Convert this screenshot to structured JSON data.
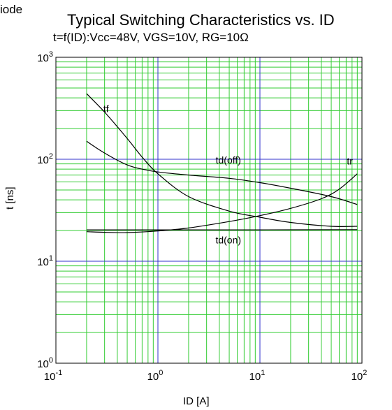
{
  "corner_text": "iode",
  "chart_data": {
    "type": "line",
    "title": "Typical Switching Characteristics vs. ID",
    "subtitle": "t=f(ID):Vcc=48V, VGS=10V, RG=10Ω",
    "xlabel": "ID [A]",
    "ylabel": "t [ns]",
    "xscale": "log",
    "yscale": "log",
    "xlim": [
      0.1,
      100
    ],
    "ylim": [
      1,
      1000
    ],
    "xticks": [
      {
        "base": "10",
        "exp": "-1"
      },
      {
        "base": "10",
        "exp": "0"
      },
      {
        "base": "10",
        "exp": "1"
      },
      {
        "base": "10",
        "exp": "2"
      }
    ],
    "yticks": [
      {
        "base": "10",
        "exp": "0"
      },
      {
        "base": "10",
        "exp": "1"
      },
      {
        "base": "10",
        "exp": "2"
      },
      {
        "base": "10",
        "exp": "3"
      }
    ],
    "grid": true,
    "minor_grid_color": "#33cc33",
    "major_grid_color": "#3333cc",
    "line_color": "#000000",
    "series": [
      {
        "name": "tf",
        "x": [
          0.2,
          0.3,
          0.5,
          0.7,
          1,
          2,
          5,
          10,
          20,
          50,
          90
        ],
        "y": [
          440,
          290,
          160,
          105,
          72,
          43,
          31,
          27,
          24,
          22,
          22
        ]
      },
      {
        "name": "td(off)",
        "x": [
          0.2,
          0.3,
          0.5,
          0.7,
          1,
          2,
          5,
          10,
          20,
          50,
          90
        ],
        "y": [
          150,
          115,
          88,
          80,
          75,
          70,
          65,
          59,
          52,
          43,
          36
        ]
      },
      {
        "name": "tr",
        "x": [
          0.2,
          0.3,
          0.5,
          1,
          2,
          5,
          10,
          20,
          40,
          60,
          90
        ],
        "y": [
          19.5,
          19.2,
          19.1,
          19.8,
          21.2,
          24.5,
          28,
          33,
          41,
          51,
          72
        ]
      },
      {
        "name": "td(on)",
        "x": [
          0.2,
          1,
          10,
          90
        ],
        "y": [
          20.3,
          20.3,
          20.3,
          20.4
        ]
      }
    ],
    "annotations": [
      {
        "text": "tf",
        "x": 0.31,
        "y": 290
      },
      {
        "text": "td(off)",
        "x": 4.9,
        "y": 91
      },
      {
        "text": "tr",
        "x": 76,
        "y": 89
      },
      {
        "text": "td(on)",
        "x": 4.9,
        "y": 14.9
      }
    ]
  }
}
